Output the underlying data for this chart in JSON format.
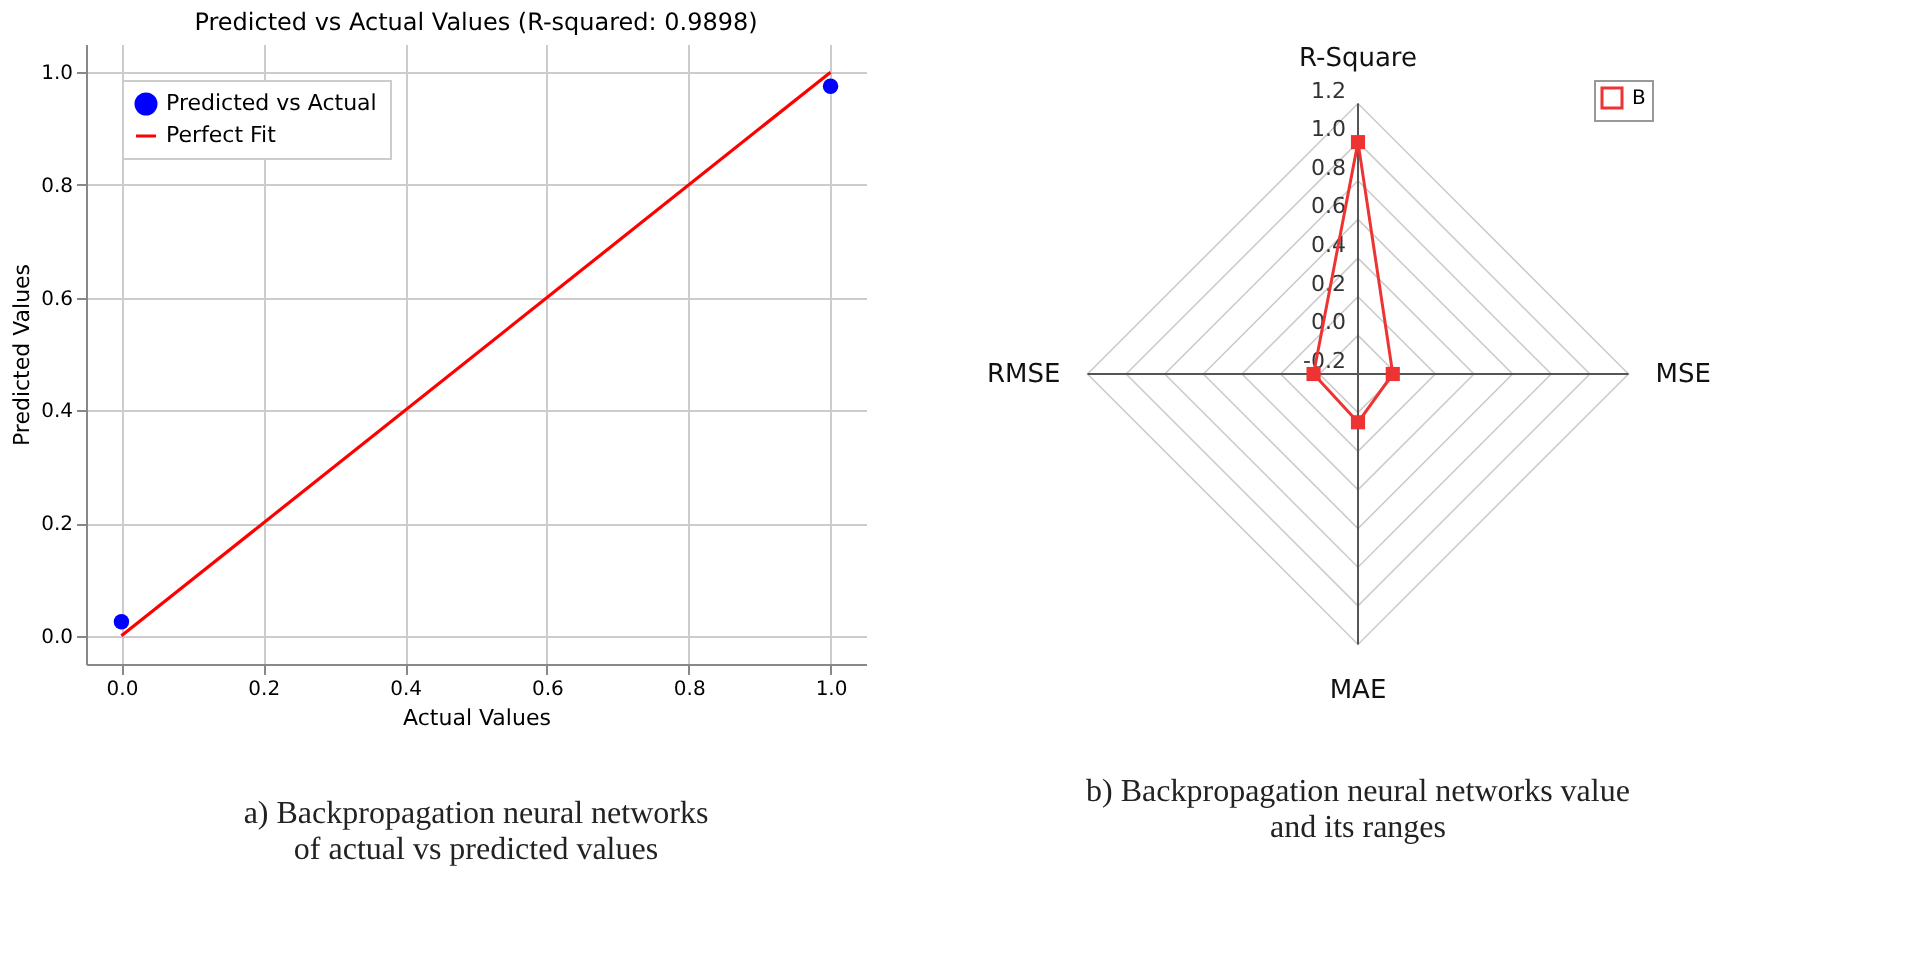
{
  "chart_data": [
    {
      "type": "scatter",
      "title": "Predicted vs Actual Values (R-squared: 0.9898)",
      "xlabel": "Actual Values",
      "ylabel": "Predicted Values",
      "series": [
        {
          "name": "Predicted vs Actual",
          "type": "scatter",
          "color": "#0000ff",
          "marker": "circle",
          "values": [
            0.025,
            0.975
          ]
        },
        {
          "name": "Perfect Fit",
          "type": "line",
          "color": "#ff0000",
          "line_style": "solid",
          "values": [
            0,
            1
          ]
        }
      ],
      "x": [
        0,
        1
      ],
      "xlim": [
        -0.05,
        1.05
      ],
      "ylim": [
        -0.05,
        1.05
      ],
      "xticks": [
        {
          "value": 0,
          "label": "0.0"
        },
        0.2,
        0.4,
        0.6,
        0.8,
        {
          "value": 1,
          "label": "1.0"
        }
      ],
      "yticks": [
        {
          "value": 0,
          "label": "0.0"
        },
        0.2,
        0.4,
        0.6,
        0.8,
        {
          "value": 1,
          "label": "1.0"
        }
      ],
      "grid": true,
      "legend": "top left",
      "annotations": [
        "a) Backpropagation neural networks\nof actual vs predicted values"
      ]
    },
    {
      "type": "radar",
      "categories": [
        "R-Square",
        "MSE",
        "MAE",
        "RMSE"
      ],
      "series": [
        {
          "name": "B",
          "color": "#ee3333",
          "marker": "square",
          "values": [
            1.0,
            -0.02,
            0.05,
            0.03
          ]
        }
      ],
      "ylim": [
        -0.2,
        1.2
      ],
      "yticks": [
        -0.2,
        {
          "value": 0,
          "label": "0.0"
        },
        0.2,
        0.4,
        0.6,
        0.8,
        {
          "value": 1,
          "label": "1.0"
        },
        1.2
      ],
      "grid": true,
      "legend": "top right",
      "annotations": [
        "b) Backpropagation neural networks value\nand its ranges"
      ]
    }
  ]
}
